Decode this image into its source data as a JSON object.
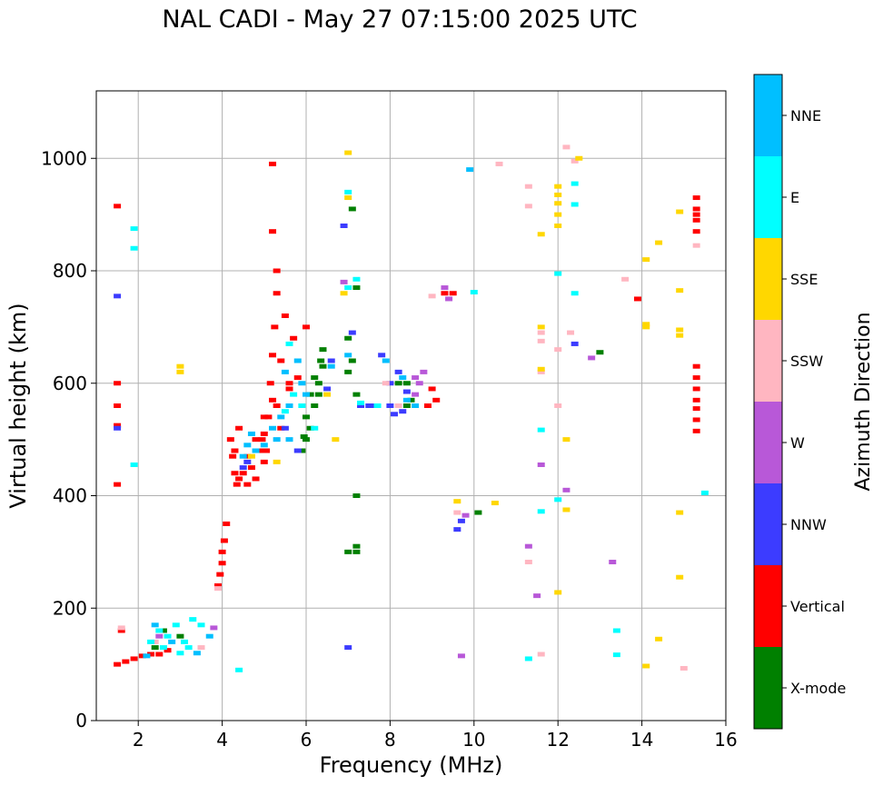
{
  "chart_data": {
    "type": "scatter",
    "title": "NAL CADI - May 27 07:15:00 2025 UTC",
    "xlabel": "Frequency (MHz)",
    "ylabel": "Virtual height (km)",
    "xlim": [
      1,
      16
    ],
    "ylim": [
      0,
      1120
    ],
    "xticks": [
      2,
      4,
      6,
      8,
      10,
      12,
      14,
      16
    ],
    "yticks": [
      0,
      200,
      400,
      600,
      800,
      1000
    ],
    "grid": true,
    "colorbar": {
      "title": "Azimuth Direction",
      "position": "right",
      "categories": [
        {
          "name": "X-mode",
          "color": "#008000"
        },
        {
          "name": "Vertical",
          "color": "#ff0000"
        },
        {
          "name": "NNW",
          "color": "#3c3cff"
        },
        {
          "name": "W",
          "color": "#b858d8"
        },
        {
          "name": "SSW",
          "color": "#ffb6c1"
        },
        {
          "name": "SSE",
          "color": "#ffd700"
        },
        {
          "name": "E",
          "color": "#00ffff"
        },
        {
          "name": "NNE",
          "color": "#00bfff"
        }
      ]
    },
    "series": [
      {
        "name": "X-mode",
        "points": [
          [
            2.4,
            130
          ],
          [
            2.6,
            160
          ],
          [
            3.0,
            150
          ],
          [
            5.9,
            480
          ],
          [
            6.0,
            500
          ],
          [
            6.1,
            520
          ],
          [
            6.2,
            560
          ],
          [
            6.3,
            600
          ],
          [
            6.35,
            640
          ],
          [
            6.4,
            660
          ],
          [
            6.2,
            610
          ],
          [
            6.0,
            540
          ],
          [
            5.95,
            505
          ],
          [
            6.3,
            580
          ],
          [
            6.4,
            630
          ],
          [
            6.1,
            580
          ],
          [
            7.0,
            620
          ],
          [
            7.0,
            680
          ],
          [
            7.1,
            640
          ],
          [
            7.2,
            580
          ],
          [
            7.2,
            400
          ],
          [
            7.2,
            310
          ],
          [
            7.2,
            300
          ],
          [
            7.2,
            770
          ],
          [
            7.1,
            910
          ],
          [
            8.4,
            560
          ],
          [
            8.5,
            570
          ],
          [
            8.2,
            600
          ],
          [
            8.4,
            600
          ],
          [
            13.0,
            655
          ],
          [
            10.1,
            370
          ],
          [
            7.0,
            300
          ]
        ]
      },
      {
        "name": "Vertical",
        "points": [
          [
            1.5,
            100
          ],
          [
            1.7,
            105
          ],
          [
            1.9,
            110
          ],
          [
            2.1,
            115
          ],
          [
            2.3,
            118
          ],
          [
            2.5,
            118
          ],
          [
            2.7,
            125
          ],
          [
            1.6,
            160
          ],
          [
            1.5,
            420
          ],
          [
            1.5,
            525
          ],
          [
            1.5,
            560
          ],
          [
            1.5,
            600
          ],
          [
            1.5,
            915
          ],
          [
            3.9,
            240
          ],
          [
            3.95,
            260
          ],
          [
            4.0,
            280
          ],
          [
            4.0,
            300
          ],
          [
            4.05,
            320
          ],
          [
            4.1,
            350
          ],
          [
            4.2,
            500
          ],
          [
            4.25,
            470
          ],
          [
            4.3,
            440
          ],
          [
            4.35,
            420
          ],
          [
            4.4,
            430
          ],
          [
            4.5,
            440
          ],
          [
            4.6,
            420
          ],
          [
            4.7,
            450
          ],
          [
            4.8,
            430
          ],
          [
            4.9,
            480
          ],
          [
            5.0,
            460
          ],
          [
            5.0,
            510
          ],
          [
            5.1,
            540
          ],
          [
            5.2,
            570
          ],
          [
            5.15,
            600
          ],
          [
            5.2,
            650
          ],
          [
            5.25,
            700
          ],
          [
            5.3,
            760
          ],
          [
            5.3,
            800
          ],
          [
            5.2,
            870
          ],
          [
            5.0,
            540
          ],
          [
            4.8,
            500
          ],
          [
            4.6,
            470
          ],
          [
            4.4,
            520
          ],
          [
            4.3,
            480
          ],
          [
            5.4,
            640
          ],
          [
            5.5,
            720
          ],
          [
            5.6,
            590
          ],
          [
            5.7,
            680
          ],
          [
            5.8,
            610
          ],
          [
            6.0,
            700
          ],
          [
            5.2,
            990
          ],
          [
            9.1,
            570
          ],
          [
            9.0,
            590
          ],
          [
            8.9,
            560
          ],
          [
            9.3,
            760
          ],
          [
            9.5,
            760
          ],
          [
            13.9,
            750
          ],
          [
            15.3,
            870
          ],
          [
            15.3,
            890
          ],
          [
            15.3,
            910
          ],
          [
            15.3,
            930
          ],
          [
            15.3,
            630
          ],
          [
            15.3,
            610
          ],
          [
            15.3,
            590
          ],
          [
            15.3,
            570
          ],
          [
            15.3,
            555
          ],
          [
            15.3,
            535
          ],
          [
            15.3,
            515
          ],
          [
            15.3,
            900
          ],
          [
            5.05,
            480
          ],
          [
            4.95,
            500
          ],
          [
            5.3,
            560
          ],
          [
            5.4,
            520
          ],
          [
            5.6,
            600
          ]
        ]
      },
      {
        "name": "NNW",
        "points": [
          [
            1.5,
            755
          ],
          [
            1.5,
            520
          ],
          [
            7.0,
            130
          ],
          [
            6.9,
            880
          ],
          [
            7.3,
            560
          ],
          [
            7.5,
            560
          ],
          [
            7.6,
            560
          ],
          [
            7.8,
            650
          ],
          [
            8.0,
            600
          ],
          [
            8.0,
            560
          ],
          [
            8.1,
            545
          ],
          [
            8.3,
            550
          ],
          [
            8.4,
            585
          ],
          [
            8.2,
            620
          ],
          [
            9.6,
            340
          ],
          [
            9.7,
            355
          ],
          [
            12.4,
            670
          ],
          [
            6.6,
            640
          ],
          [
            6.5,
            590
          ],
          [
            5.5,
            520
          ],
          [
            5.8,
            480
          ],
          [
            7.1,
            690
          ],
          [
            4.6,
            460
          ],
          [
            4.5,
            450
          ]
        ]
      },
      {
        "name": "W",
        "points": [
          [
            8.6,
            580
          ],
          [
            8.7,
            600
          ],
          [
            8.8,
            620
          ],
          [
            8.6,
            610
          ],
          [
            9.3,
            770
          ],
          [
            9.4,
            750
          ],
          [
            9.8,
            365
          ],
          [
            12.8,
            645
          ],
          [
            13.3,
            282
          ],
          [
            11.3,
            310
          ],
          [
            12.2,
            410
          ],
          [
            11.6,
            455
          ],
          [
            11.5,
            222
          ],
          [
            9.7,
            115
          ],
          [
            3.8,
            165
          ],
          [
            2.5,
            150
          ],
          [
            6.9,
            780
          ]
        ]
      },
      {
        "name": "SSW",
        "points": [
          [
            1.6,
            165
          ],
          [
            2.4,
            140
          ],
          [
            3.5,
            130
          ],
          [
            3.9,
            235
          ],
          [
            7.9,
            600
          ],
          [
            9.0,
            755
          ],
          [
            9.6,
            370
          ],
          [
            10.6,
            990
          ],
          [
            11.3,
            915
          ],
          [
            11.6,
            690
          ],
          [
            11.6,
            675
          ],
          [
            11.6,
            620
          ],
          [
            12.0,
            560
          ],
          [
            12.3,
            690
          ],
          [
            12.2,
            1020
          ],
          [
            12.4,
            995
          ],
          [
            13.6,
            785
          ],
          [
            15.0,
            93
          ],
          [
            15.3,
            845
          ],
          [
            11.3,
            282
          ],
          [
            11.6,
            118
          ],
          [
            11.3,
            950
          ],
          [
            12.0,
            660
          ],
          [
            8.2,
            560
          ]
        ]
      },
      {
        "name": "SSE",
        "points": [
          [
            3.0,
            620
          ],
          [
            3.0,
            630
          ],
          [
            6.7,
            500
          ],
          [
            6.5,
            580
          ],
          [
            6.9,
            760
          ],
          [
            7.0,
            1010
          ],
          [
            7.0,
            930
          ],
          [
            11.6,
            865
          ],
          [
            12.0,
            880
          ],
          [
            12.0,
            900
          ],
          [
            12.0,
            920
          ],
          [
            12.0,
            935
          ],
          [
            12.0,
            950
          ],
          [
            12.2,
            500
          ],
          [
            12.2,
            375
          ],
          [
            12.0,
            228
          ],
          [
            12.5,
            1000
          ],
          [
            14.1,
            705
          ],
          [
            14.1,
            700
          ],
          [
            14.1,
            820
          ],
          [
            14.4,
            850
          ],
          [
            14.9,
            905
          ],
          [
            14.9,
            765
          ],
          [
            14.9,
            695
          ],
          [
            14.9,
            685
          ],
          [
            14.9,
            370
          ],
          [
            14.9,
            255
          ],
          [
            14.4,
            145
          ],
          [
            14.1,
            97
          ],
          [
            11.6,
            700
          ],
          [
            11.6,
            625
          ],
          [
            9.6,
            390
          ],
          [
            10.5,
            387
          ],
          [
            4.7,
            470
          ],
          [
            5.3,
            460
          ]
        ]
      },
      {
        "name": "E",
        "points": [
          [
            1.9,
            840
          ],
          [
            1.9,
            875
          ],
          [
            1.9,
            455
          ],
          [
            2.3,
            140
          ],
          [
            2.5,
            160
          ],
          [
            2.7,
            150
          ],
          [
            2.9,
            170
          ],
          [
            3.1,
            140
          ],
          [
            3.2,
            130
          ],
          [
            3.3,
            180
          ],
          [
            3.5,
            170
          ],
          [
            2.6,
            130
          ],
          [
            3.0,
            120
          ],
          [
            4.4,
            90
          ],
          [
            7.0,
            940
          ],
          [
            7.0,
            770
          ],
          [
            7.2,
            785
          ],
          [
            7.3,
            565
          ],
          [
            7.7,
            560
          ],
          [
            10.0,
            762
          ],
          [
            11.3,
            110
          ],
          [
            11.6,
            372
          ],
          [
            11.6,
            517
          ],
          [
            12.0,
            795
          ],
          [
            12.0,
            393
          ],
          [
            12.4,
            760
          ],
          [
            12.4,
            918
          ],
          [
            12.4,
            955
          ],
          [
            13.4,
            117
          ],
          [
            13.4,
            160
          ],
          [
            15.5,
            405
          ],
          [
            5.5,
            550
          ],
          [
            5.7,
            580
          ],
          [
            5.6,
            670
          ],
          [
            6.2,
            520
          ],
          [
            5.9,
            560
          ]
        ]
      },
      {
        "name": "NNE",
        "points": [
          [
            2.2,
            115
          ],
          [
            2.4,
            170
          ],
          [
            2.8,
            140
          ],
          [
            3.4,
            120
          ],
          [
            3.7,
            150
          ],
          [
            4.5,
            470
          ],
          [
            4.6,
            490
          ],
          [
            4.7,
            510
          ],
          [
            4.8,
            480
          ],
          [
            5.2,
            520
          ],
          [
            5.4,
            540
          ],
          [
            5.5,
            620
          ],
          [
            5.6,
            560
          ],
          [
            5.8,
            640
          ],
          [
            5.9,
            600
          ],
          [
            6.0,
            580
          ],
          [
            6.6,
            630
          ],
          [
            7.0,
            650
          ],
          [
            7.9,
            640
          ],
          [
            8.3,
            610
          ],
          [
            8.4,
            570
          ],
          [
            8.6,
            560
          ],
          [
            9.9,
            980
          ],
          [
            5.3,
            500
          ],
          [
            5.0,
            490
          ],
          [
            5.6,
            500
          ]
        ]
      }
    ]
  }
}
